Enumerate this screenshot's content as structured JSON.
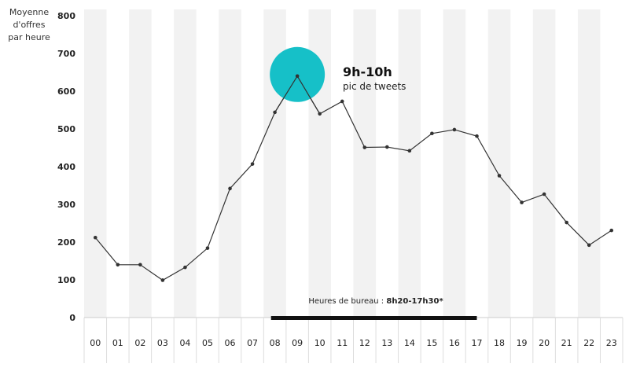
{
  "chart_data": {
    "type": "line",
    "ylabel_lines": [
      "Moyenne",
      "d'offres",
      "par heure"
    ],
    "categories": [
      "00",
      "01",
      "02",
      "03",
      "04",
      "05",
      "06",
      "07",
      "08",
      "09",
      "10",
      "11",
      "12",
      "13",
      "14",
      "15",
      "16",
      "17",
      "18",
      "19",
      "20",
      "21",
      "22",
      "23"
    ],
    "values": [
      212,
      140,
      140,
      99,
      133,
      184,
      342,
      407,
      544,
      640,
      540,
      573,
      451,
      452,
      442,
      488,
      498,
      481,
      376,
      305,
      327,
      252,
      192,
      231
    ],
    "ylim": [
      0,
      800
    ],
    "yticks": [
      0,
      100,
      200,
      300,
      400,
      500,
      600,
      700,
      800
    ],
    "grid": "alternating vertical bands",
    "colors": {
      "line": "#333333",
      "band": "#f2f2f2",
      "highlight": "#16c0c8",
      "bar": "#111111"
    },
    "annotation": {
      "title": "9h-10h",
      "subtitle": "pic de tweets",
      "at_category": "09"
    },
    "office_hours": {
      "label": "Heures de bureau : ",
      "range": "8h20-17h30*",
      "from_hour": 8.33,
      "to_hour": 17.5
    }
  }
}
